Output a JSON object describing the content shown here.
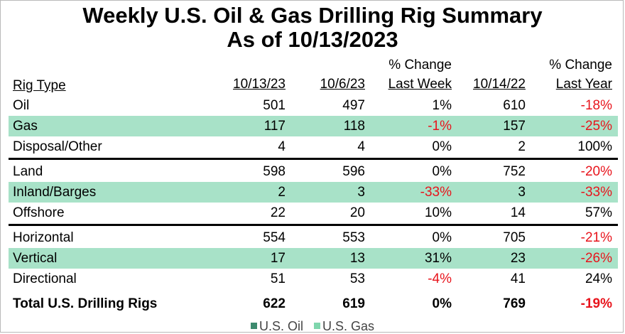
{
  "title": "Weekly U.S. Oil & Gas Drilling Rig Summary",
  "subtitle": "As of 10/13/2023",
  "headers": {
    "rig_type": "Rig Type",
    "c1": "10/13/23",
    "c2": "10/6/23",
    "c3_top": "% Change",
    "c3_bottom": "Last Week",
    "c4": "10/14/22",
    "c5_top": "% Change",
    "c5_bottom": "Last Year"
  },
  "rows": [
    {
      "label": "Oil",
      "c1": "501",
      "c2": "497",
      "c3": "1%",
      "c4": "610",
      "c5": "-18%"
    },
    {
      "label": "Gas",
      "c1": "117",
      "c2": "118",
      "c3": "-1%",
      "c4": "157",
      "c5": "-25%"
    },
    {
      "label": "Disposal/Other",
      "c1": "4",
      "c2": "4",
      "c3": "0%",
      "c4": "2",
      "c5": "100%"
    },
    {
      "label": "Land",
      "c1": "598",
      "c2": "596",
      "c3": "0%",
      "c4": "752",
      "c5": "-20%"
    },
    {
      "label": "Inland/Barges",
      "c1": "2",
      "c2": "3",
      "c3": "-33%",
      "c4": "3",
      "c5": "-33%"
    },
    {
      "label": "Offshore",
      "c1": "22",
      "c2": "20",
      "c3": "10%",
      "c4": "14",
      "c5": "57%"
    },
    {
      "label": "Horizontal",
      "c1": "554",
      "c2": "553",
      "c3": "0%",
      "c4": "705",
      "c5": "-21%"
    },
    {
      "label": "Vertical",
      "c1": "17",
      "c2": "13",
      "c3": "31%",
      "c4": "23",
      "c5": "-26%"
    },
    {
      "label": "Directional",
      "c1": "51",
      "c2": "53",
      "c3": "-4%",
      "c4": "41",
      "c5": "24%"
    },
    {
      "label": "Total U.S. Drilling Rigs",
      "c1": "622",
      "c2": "619",
      "c3": "0%",
      "c4": "769",
      "c5": "-19%"
    }
  ],
  "legend": [
    {
      "label": "U.S. Oil",
      "color": "#3d8a6e"
    },
    {
      "label": "U.S. Gas",
      "color": "#7fd6ad"
    }
  ],
  "colors": {
    "shade": "#a8e2c8",
    "negative": "#e8141c"
  }
}
